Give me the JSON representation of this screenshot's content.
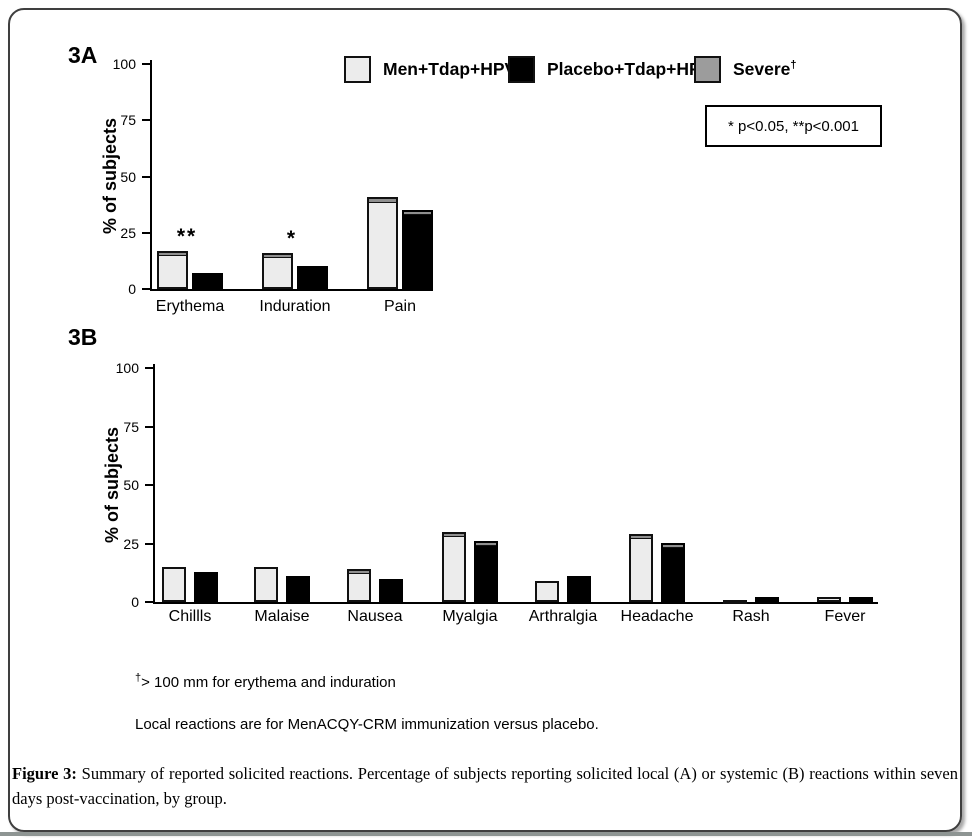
{
  "figure": {
    "panel_a_label": "3A",
    "panel_b_label": "3B",
    "legend": [
      {
        "label": "Men+Tdap+HPV",
        "superscript": "",
        "color": "#ececec"
      },
      {
        "label": "Placebo+Tdap+HPV",
        "superscript": "",
        "color": "#000000"
      },
      {
        "label": "Severe",
        "superscript": "†",
        "color": "#9c9c9c"
      }
    ],
    "pvalue_note": "* p<0.05, **p<0.001",
    "footnote_dagger": "†",
    "footnote_dagger_text": "> 100 mm for erythema and induration",
    "footnote_local": "Local reactions are for MenACQY-CRM immunization versus placebo.",
    "caption_label": "Figure 3:",
    "caption_text": " Summary of reported solicited reactions. Percentage of subjects reporting solicited local (A) or systemic (B) reactions within seven days post-vaccination, by group.",
    "bottom_bar_color": "#8e9593",
    "colors": {
      "light_series": "#ececec",
      "dark_series": "#000000",
      "severe": "#8f8f8f"
    }
  },
  "chart_data": [
    {
      "id": "A",
      "type": "bar",
      "panel": "3A",
      "ylabel": "% of subjects",
      "ylim": [
        0,
        100
      ],
      "yticks": [
        0,
        25,
        50,
        75,
        100
      ],
      "grid": false,
      "legend_position": "top",
      "categories": [
        "Erythema",
        "Induration",
        "Pain"
      ],
      "series": [
        {
          "name": "Men+Tdap+HPV",
          "values": [
            17,
            16,
            41
          ],
          "severe": [
            1,
            1,
            1.5
          ]
        },
        {
          "name": "Placebo+Tdap+HPV",
          "values": [
            7,
            10,
            35
          ],
          "severe": [
            0,
            0,
            1
          ]
        }
      ],
      "annotations": [
        {
          "category": "Erythema",
          "text": "**"
        },
        {
          "category": "Induration",
          "text": "*"
        }
      ]
    },
    {
      "id": "B",
      "type": "bar",
      "panel": "3B",
      "ylabel": "% of subjects",
      "ylim": [
        0,
        100
      ],
      "yticks": [
        0,
        25,
        50,
        75,
        100
      ],
      "grid": false,
      "categories": [
        "Chillls",
        "Malaise",
        "Nausea",
        "Myalgia",
        "Arthralgia",
        "Headache",
        "Rash",
        "Fever"
      ],
      "series": [
        {
          "name": "Men+Tdap+HPV",
          "values": [
            15,
            15,
            14,
            30,
            9,
            29,
            1,
            2
          ],
          "severe": [
            0,
            0,
            1,
            1,
            0,
            1,
            0,
            0
          ]
        },
        {
          "name": "Placebo+Tdap+HPV",
          "values": [
            13,
            11,
            10,
            26,
            11,
            25,
            2,
            2
          ],
          "severe": [
            0,
            0,
            0,
            1,
            0,
            0.5,
            0,
            0
          ]
        }
      ],
      "annotations": []
    }
  ]
}
